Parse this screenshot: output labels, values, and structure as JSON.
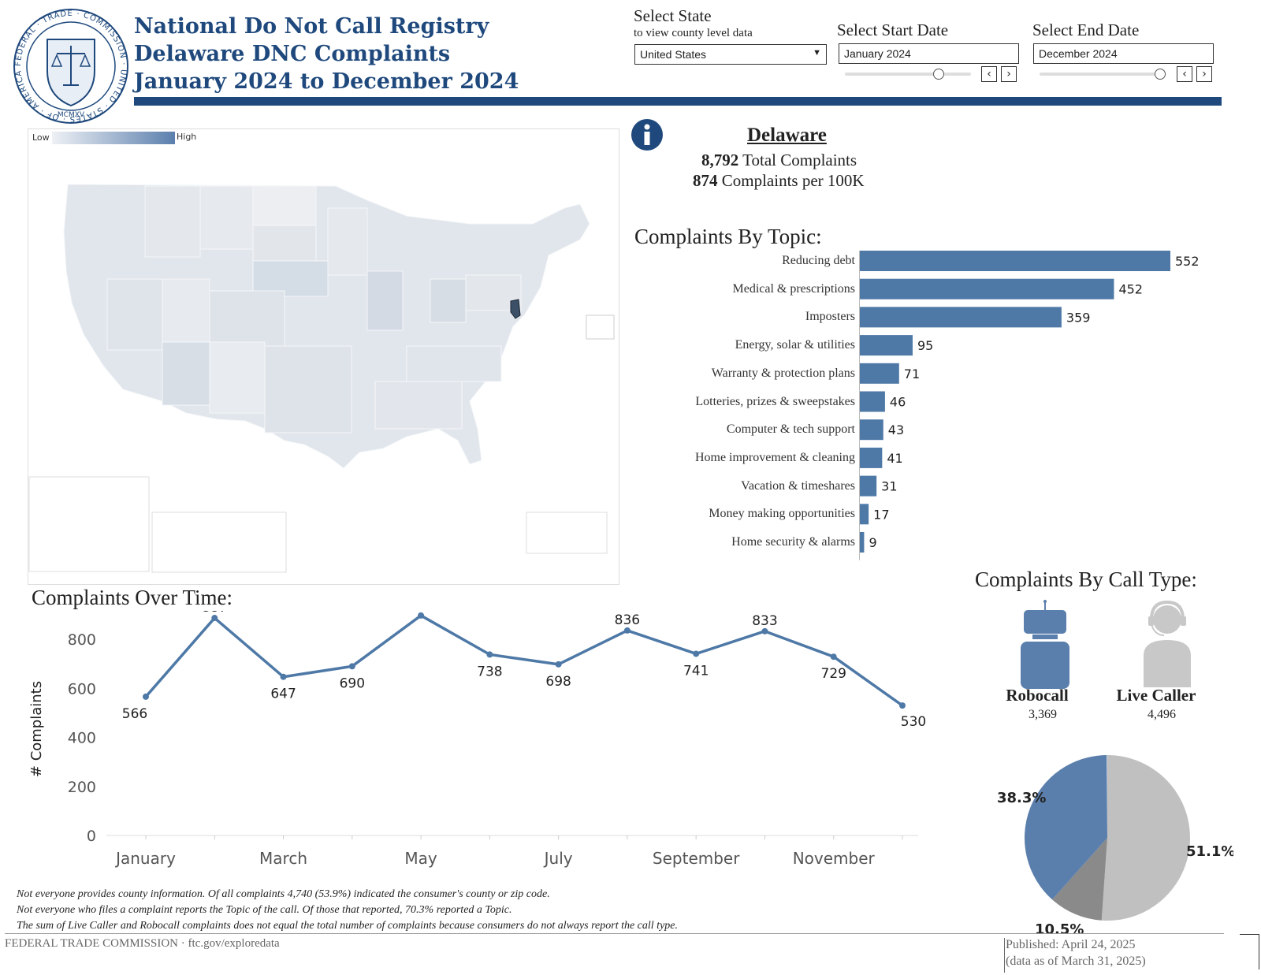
{
  "header": {
    "seal_text": "FEDERAL TRADE COMMISSION · UNITED STATES OF AMERICA · MCMXV",
    "title_lines": [
      "National Do Not Call Registry",
      "Delaware DNC Complaints",
      "January 2024 to December 2024"
    ],
    "colors": {
      "brand": "#1f497d",
      "bar": "#4e79a7",
      "robocall": "#5b7fad",
      "live_caller": "#c0c0c0",
      "other": "#8a8a8a"
    }
  },
  "filters": {
    "state": {
      "label": "Select State",
      "sublabel": "to view county level data",
      "value": "United States"
    },
    "start_date": {
      "label": "Select Start Date",
      "value": "January 2024",
      "slider_fraction": 0.0
    },
    "end_date": {
      "label": "Select End Date",
      "value": "December 2024",
      "slider_fraction": 1.0
    }
  },
  "map": {
    "legend_low": "Low",
    "legend_high": "High",
    "highlighted_state": "Delaware"
  },
  "summary": {
    "state": "Delaware",
    "total_value": "8,792",
    "total_label": "Total Complaints",
    "per100k_value": "874",
    "per100k_label": "Complaints per 100K"
  },
  "topics": {
    "title": "Complaints By Topic:"
  },
  "over_time": {
    "title": "Complaints Over Time:"
  },
  "call_type": {
    "title": "Complaints By Call Type:",
    "robocall_label": "Robocall",
    "robocall_value": "3,369",
    "live_label": "Live Caller",
    "live_value": "4,496"
  },
  "chart_data": [
    {
      "type": "bar",
      "orientation": "horizontal",
      "title": "Complaints By Topic:",
      "categories": [
        "Reducing debt",
        "Medical & prescriptions",
        "Imposters",
        "Energy, solar & utilities",
        "Warranty & protection plans",
        "Lotteries, prizes & sweepstakes",
        "Computer & tech support",
        "Home improvement & cleaning",
        "Vacation & timeshares",
        "Money making opportunities",
        "Home security & alarms"
      ],
      "values": [
        552,
        452,
        359,
        95,
        71,
        46,
        43,
        41,
        31,
        17,
        9
      ]
    },
    {
      "type": "line",
      "title": "Complaints Over Time:",
      "ylabel": "# Complaints",
      "x": [
        "January",
        "February",
        "March",
        "April",
        "May",
        "June",
        "July",
        "August",
        "September",
        "October",
        "November",
        "December"
      ],
      "x_tick_labels": [
        "January",
        "March",
        "May",
        "July",
        "September",
        "November"
      ],
      "values": [
        566,
        887,
        647,
        690,
        897,
        738,
        698,
        836,
        741,
        833,
        729,
        530
      ],
      "y_ticks": [
        0,
        200,
        400,
        600,
        800
      ],
      "ylim": [
        0,
        900
      ]
    },
    {
      "type": "pie",
      "title": "Complaints By Call Type",
      "slices": [
        {
          "name": "Live Caller",
          "percent": 51.1,
          "label": "51.1%"
        },
        {
          "name": "Other",
          "percent": 10.5,
          "label": "10.5%"
        },
        {
          "name": "Robocall",
          "percent": 38.3,
          "label": "38.3%"
        }
      ]
    }
  ],
  "footnotes": [
    "Not everyone provides county information.  Of all complaints 4,740 (53.9%) indicated the consumer's county or zip code.",
    "Not everyone who files a complaint reports the Topic of the call.  Of those that reported, 70.3% reported a Topic.",
    "The sum of Live Caller and Robocall complaints does not equal the total number of complaints because consumers do not always report the call type."
  ],
  "footer": {
    "source": "FEDERAL TRADE COMMISSION · ftc.gov/exploredata",
    "published": "Published: April 24, 2025",
    "data_as_of": "(data as of March 31, 2025)"
  }
}
